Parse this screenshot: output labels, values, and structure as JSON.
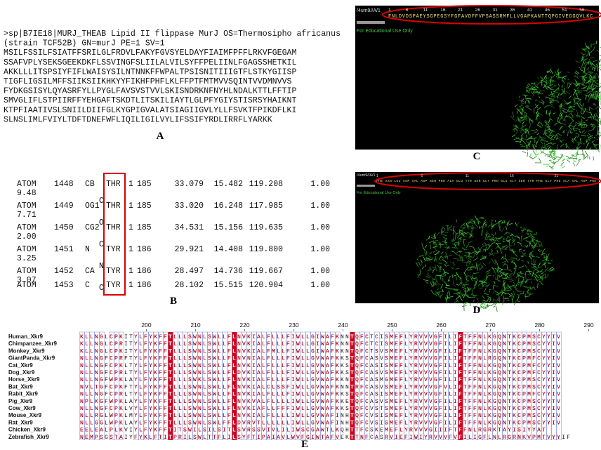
{
  "panel_a": {
    "label": "A",
    "lines": [
      ">sp|B7IE18|MURJ_THEAB Lipid II flippase MurJ OS=Thermosipho africanus",
      "(strain TCF52B) GN=murJ PE=1 SV=1",
      "MSILFSSILFSIATFFSRILGLFRDVLFAKYFGVSYELDAYFIAIMFPFFLRKVFGEGAM",
      "SSAFVPLYSEKSGEEKDKFLSSVINGFSLIILALVILSYFFPELIINLFGAGSSHETKIL",
      "AKKLLLITSPSIYFIFLWAISYSILNTNNKFFWPALTPSISNITIIIGTFLSTKYGIISP",
      "TIGFLIGSILMFFSIIKSIIKHKYYFIKHFPHFLKLFFPTFMTMVVSQINTVVDMNVVS",
      "FYDKGSISYLQYASRFYLLPYGLFAVSVSTVVLSKISNDRKNFNYHLNDALKTTLFFTIP",
      "SMVGLIFLSTPIIRFFYEHGAFTSKDTLITSKILIAYTLGLPFYGIYSTISRSYHAIKNT",
      "KTPFIAATIVSLSNIILDIIFGLKYGPIGVALATSIAGIIGVLYLLFSVKTFPIKDFLKI",
      "SLNSLIMLFVIYLTDFTDNEFWFLIQILIGILVYLIFSSIFYRDLIRRFLYARKK"
    ]
  },
  "panel_b": {
    "label": "B",
    "rows": [
      {
        "record": "ATOM",
        "serial": "1448",
        "atom": "CB",
        "residue": "THR",
        "chain": "1",
        "resseq": "185",
        "x": "33.079",
        "y": "15.482",
        "z": "119.208",
        "occupancy": "1.00",
        "bfactor": "9.48",
        "element": "C"
      },
      {
        "record": "ATOM",
        "serial": "1449",
        "atom": "OG1",
        "residue": "THR",
        "chain": "1",
        "resseq": "185",
        "x": "33.020",
        "y": "16.248",
        "z": "117.985",
        "occupancy": "1.00",
        "bfactor": "7.71",
        "element": "O"
      },
      {
        "record": "ATOM",
        "serial": "1450",
        "atom": "CG2",
        "residue": "THR",
        "chain": "1",
        "resseq": "185",
        "x": "34.531",
        "y": "15.156",
        "z": "119.635",
        "occupancy": "1.00",
        "bfactor": "2.00",
        "element": "C"
      },
      {
        "record": "ATOM",
        "serial": "1451",
        "atom": "N",
        "residue": "TYR",
        "chain": "1",
        "resseq": "186",
        "x": "29.921",
        "y": "14.408",
        "z": "119.800",
        "occupancy": "1.00",
        "bfactor": "3.25",
        "element": "N"
      },
      {
        "record": "ATOM",
        "serial": "1452",
        "atom": "CA",
        "residue": "TYR",
        "chain": "1",
        "resseq": "186",
        "x": "28.497",
        "y": "14.736",
        "z": "119.667",
        "occupancy": "1.00",
        "bfactor": "3.07",
        "element": "C"
      },
      {
        "record": "ATOM",
        "serial": "1453",
        "atom": "C",
        "residue": "TYR",
        "chain": "1",
        "resseq": "186",
        "x": "28.102",
        "y": "15.515",
        "z": "120.904",
        "occupancy": "1.00"
      }
    ]
  },
  "panel_c": {
    "label": "C",
    "structure_id": "/4um9//A/1",
    "positions": [
      1,
      6,
      11,
      16,
      21,
      26,
      31,
      36,
      41,
      46,
      51,
      56
    ],
    "sequence": "FNLDVDSPAEYSGPEGSYFGFAVDFFVPSASSRMFLLVGAPKANTTQPGIVEGGQVLKC",
    "watermark": "For Educational Use Only"
  },
  "panel_d": {
    "label": "D",
    "structure_id": "/4um9//A/1",
    "positions": [
      1,
      6,
      11,
      16,
      21
    ],
    "sequence": "PHE ASN LEU ASP VAL ASP SER PRO ALA GLU TYR SER GLY PRO GLU GLY SER TYR PHE GLY PHE ALA VAL ASP PHE",
    "watermark": "For Educational Use Only"
  },
  "panel_e": {
    "label": "E",
    "ruler": [
      200,
      210,
      220,
      230,
      240,
      250,
      260,
      270,
      280,
      290
    ],
    "alignment": [
      {
        "name": "Human_Xkr9",
        "sequence": "KLLNGLCPKITYLFYKFFTLLLSWNLSWLLFLNVKIALFLLLFIWLLGIWAFKNNTQFCTCISMEFLYRVVVGFILIFTFFNLKGQNTKCPMSCYYIV"
      },
      {
        "name": "Chimpanzee_Xkr9",
        "sequence": "KLLNGLCPRITYLFYKFFTLLLSWNLSWLLFLNVKIALFLLLFIWLLGIWAFKNNTQFCTCISMEFLYRVVVGFILIFTFFNLKGQNTKCPMSCYYIV"
      },
      {
        "name": "Monkey_Xkr9",
        "sequence": "KLLNGLCPKITYLFYKFFTLLLSWNLSWLLFLNVKIALFMLLFIWLLGIWAFKKNTQFCTSVSMEFLYRVVVGFILIFTFFNLKGQNTKCPMSCYYIV"
      },
      {
        "name": "GiantPanda_Xkr9",
        "sequence": "NLLNGFCPRFTYLFYKFFTLLLSWNLSWLLFLNVNIALFLLLFIWLLGVWAFKKSTQFCASVSMEFLYRVVVGFILIFTFFNLRGQNTKCPMFCYYIV"
      },
      {
        "name": "Cat_Xkr9",
        "sequence": "NLLNGFCPKLTYLFYKFFTLLLSWNLSWLLFLNVKIALFLLLFIWLLGVWAFKKSTQFCASISMEFLYRVVVGFILIFTFFNLKGQNTKCPMFCYYIV"
      },
      {
        "name": "Dog_Xkr9",
        "sequence": "NLLNGFCPRLTYLFYKFFTLLLSWNLSWLLFLDVKIALFLLLFIWLLGVWAFKKSTQFCASVSMEFLYRVVVGFILIFTFFNLKGQNTKCPMFCYYIV"
      },
      {
        "name": "Horse_Xkr9",
        "sequence": "NLLNGFWPKLAYLFYKFFTLLLSWKLSWLLFLNVKIALFLLLFIWLLGVWAFKKNTQFCASMGMEFLYRVVVGFILIFTFFNLKGQNTKCPMSCYYIV"
      },
      {
        "name": "Bat_Xkr9",
        "sequence": "NVLTGFCPKFTYLFYKFFTLLLSWNLSWLLFLNVKIALCLSSFIWLLGVWAFKNNTRFCASVSMEFLYRVVVGFVLIFTFFNLKGQNTKCPMSCYYIV"
      },
      {
        "name": "Rabit_Xkr9",
        "sequence": "NLLNGFCPRLTYLFYKFFTLLLSWNLSWLLFLNVKIALFLLLFIWLLGVWAFKKSTQFCASISMEFLYRVVVGFILIFTFFNLKGQNTKCPMFCYYIV"
      },
      {
        "name": "Pig_Xkr9",
        "sequence": "NPLKGFWPKLAYLFYKFFTLLLSWNLSWLLFLNVKVALFLLLLIWLLGVWAFKKETQFCASVSMEFLYRVVVGFILIFTFFNLKGQNTKCPMSCYYTV"
      },
      {
        "name": "Cow_Xkr9",
        "sequence": "NLLNGFCPKLVYLFYKFFTLLLSWNLSWLLFLNVKIAFLLFFFIWLLGVWAFKKSTQFCVSTSMEFLYRVVVGFILIFTFFNLKGQNTKCPMSCYYIV"
      },
      {
        "name": "Mouse_Xkr9",
        "sequence": "NLLRGLWPKLMYLFYKFFTLLLSWNLSWLLFLNVKIALFLLLLIWLLGVWAFINHTQFCVSISMEFLYRVVVGFILIFTFFNLKGQNTKCPMSCYYIV"
      },
      {
        "name": "Rat_Xkr9",
        "sequence": "NLLGGLWPKLAYLFYKFFTLLLSWNLSWLFFLDVRVTLLLLLLIWLLGVWAFINHTQFCVSISMEFLYRVVVGFILIFTFFNLKGQNTKCPMSCYYIV"
      },
      {
        "name": "Chicken_Xkr9",
        "sequence": "EELEALPLKVIYLFYKFFTITSWILSILSITLSVRSSVIVLILIWSCGAWTLKQHTTFCSKEMEFLYRVVVGIIIFTFFNLRGRKTAYISIYYAT"
      },
      {
        "name": "Zebrafish_Xkr9",
        "sequence": "NEMPSGSTAIYFYKLFTITPRILSWLTTFLILSYFTIPAIAVLWVFGIWTAFVEKTTNFCASRVIEFIWIYRVVVFVFILIGFLNLRGRNKVPMTVYYIF"
      }
    ]
  }
}
